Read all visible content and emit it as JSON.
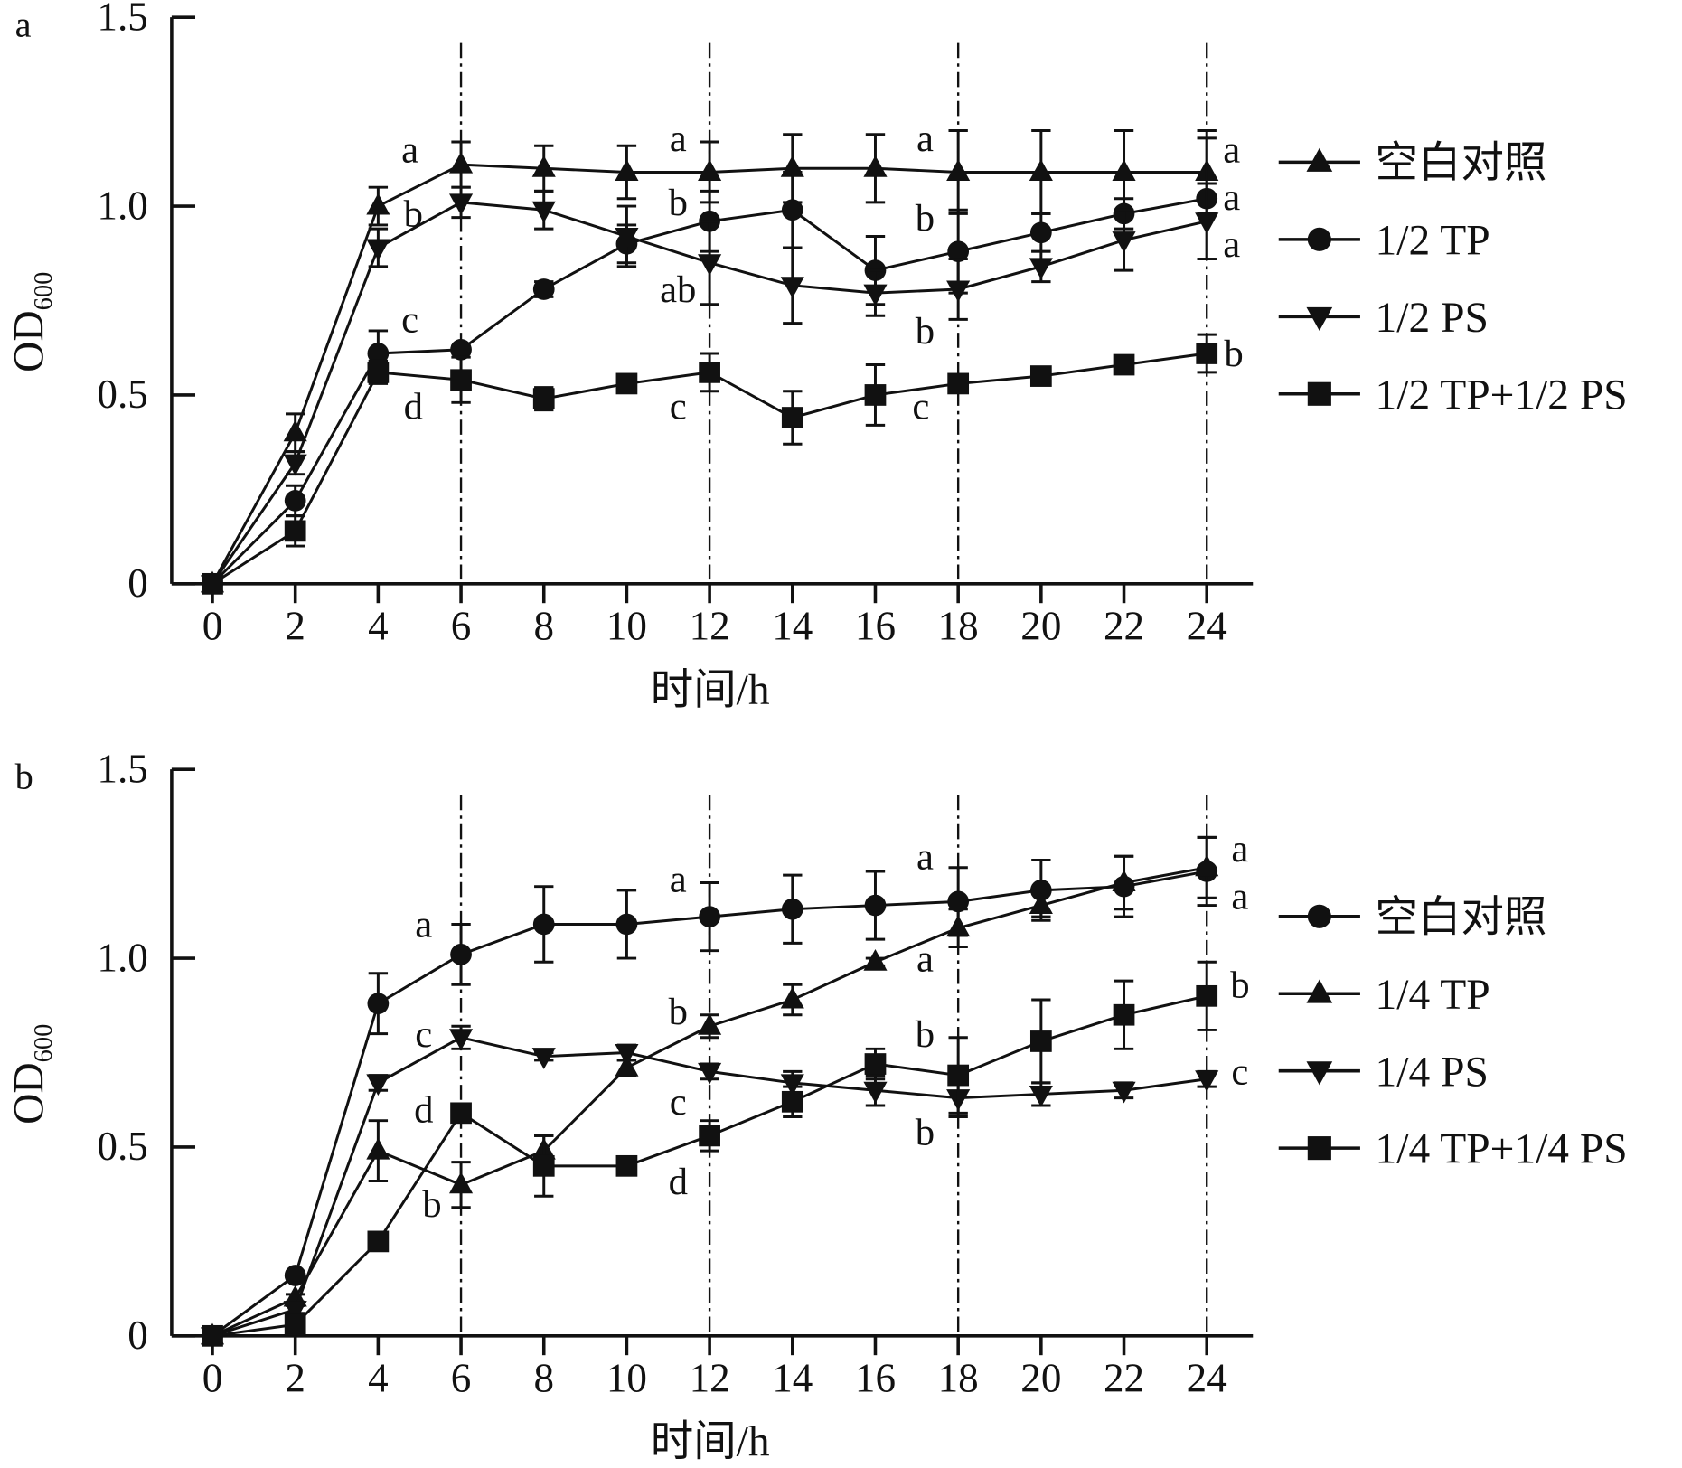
{
  "chart_data": [
    {
      "type": "line",
      "panel_label": "a",
      "xlabel": "时间/h",
      "ylabel": "OD",
      "ylabel_sub": "600",
      "xlim": [
        0,
        24
      ],
      "ylim": [
        0,
        1.5
      ],
      "x": [
        0,
        2,
        4,
        6,
        8,
        10,
        12,
        14,
        16,
        18,
        20,
        22,
        24
      ],
      "x_tick_labels": [
        "0",
        "2",
        "4",
        "6",
        "8",
        "10",
        "12",
        "14",
        "16",
        "18",
        "20",
        "22",
        "24"
      ],
      "y_ticks": [
        0,
        0.5,
        1.0,
        1.5
      ],
      "y_tick_labels": [
        "0",
        "0.5",
        "1.0",
        "1.5"
      ],
      "vlines": [
        6,
        12,
        18,
        24
      ],
      "legend_position": "right",
      "series": [
        {
          "name": "空白对照",
          "marker": "triangle-up",
          "values": [
            0,
            0.4,
            1.0,
            1.11,
            1.1,
            1.09,
            1.09,
            1.1,
            1.1,
            1.09,
            1.09,
            1.09,
            1.09
          ],
          "errors": [
            0,
            0.05,
            0.05,
            0.06,
            0.06,
            0.07,
            0.08,
            0.09,
            0.09,
            0.11,
            0.11,
            0.11,
            0.11
          ]
        },
        {
          "name": "1/2 TP",
          "marker": "circle",
          "values": [
            0,
            0.22,
            0.61,
            0.62,
            0.78,
            0.9,
            0.96,
            0.99,
            0.83,
            0.88,
            0.93,
            0.98,
            1.02
          ],
          "errors": [
            0,
            0.04,
            0.06,
            0.01,
            0.02,
            0.05,
            0.08,
            0.1,
            0.09,
            0.11,
            0.05,
            0.04,
            0.16
          ]
        },
        {
          "name": "1/2 PS",
          "marker": "triangle-down",
          "values": [
            0,
            0.32,
            0.89,
            1.01,
            0.99,
            0.92,
            0.85,
            0.79,
            0.77,
            0.78,
            0.84,
            0.91,
            0.96
          ],
          "errors": [
            0,
            0.03,
            0.05,
            0.04,
            0.05,
            0.08,
            0.11,
            0.1,
            0.06,
            0.08,
            0.04,
            0.08,
            0.1
          ]
        },
        {
          "name": "1/2 TP+1/2 PS",
          "marker": "square",
          "values": [
            0,
            0.14,
            0.56,
            0.54,
            0.49,
            0.53,
            0.56,
            0.44,
            0.5,
            0.53,
            0.55,
            0.58,
            0.61
          ],
          "errors": [
            0,
            0.04,
            0.03,
            0.06,
            0.03,
            0.02,
            0.05,
            0.07,
            0.08,
            0.02,
            0.01,
            0.01,
            0.05
          ]
        }
      ],
      "annotations": [
        {
          "text": "a",
          "x": 4.77,
          "y": 1.15
        },
        {
          "text": "b",
          "x": 4.85,
          "y": 0.98
        },
        {
          "text": "c",
          "x": 4.77,
          "y": 0.7
        },
        {
          "text": "d",
          "x": 4.85,
          "y": 0.47
        },
        {
          "text": "a",
          "x": 11.24,
          "y": 1.18
        },
        {
          "text": "b",
          "x": 11.24,
          "y": 1.01
        },
        {
          "text": "ab",
          "x": 11.24,
          "y": 0.78
        },
        {
          "text": "c",
          "x": 11.24,
          "y": 0.47
        },
        {
          "text": "a",
          "x": 17.2,
          "y": 1.18
        },
        {
          "text": "b",
          "x": 17.2,
          "y": 0.97
        },
        {
          "text": "b",
          "x": 17.2,
          "y": 0.67
        },
        {
          "text": "c",
          "x": 17.1,
          "y": 0.47
        },
        {
          "text": "a",
          "x": 24.6,
          "y": 1.15
        },
        {
          "text": "a",
          "x": 24.6,
          "y": 1.03
        },
        {
          "text": "a",
          "x": 24.6,
          "y": 0.96
        },
        {
          "text": "b",
          "x": 24.65,
          "y": 0.61
        }
      ]
    },
    {
      "type": "line",
      "panel_label": "b",
      "xlabel": "时间/h",
      "ylabel": "OD",
      "ylabel_sub": "600",
      "xlim": [
        0,
        24
      ],
      "ylim": [
        0,
        1.5
      ],
      "x": [
        0,
        2,
        4,
        6,
        8,
        10,
        12,
        14,
        16,
        18,
        20,
        22,
        24
      ],
      "x_tick_labels": [
        "0",
        "2",
        "4",
        "6",
        "8",
        "10",
        "12",
        "14",
        "16",
        "18",
        "20",
        "22",
        "24"
      ],
      "y_ticks": [
        0,
        0.5,
        1.0,
        1.5
      ],
      "y_tick_labels": [
        "0",
        "0.5",
        "1.0",
        "1.5"
      ],
      "vlines": [
        6,
        12,
        18,
        24
      ],
      "legend_position": "right",
      "series": [
        {
          "name": "空白对照",
          "marker": "circle",
          "values": [
            0,
            0.16,
            0.88,
            1.01,
            1.09,
            1.09,
            1.11,
            1.13,
            1.14,
            1.15,
            1.18,
            1.19,
            1.23
          ],
          "errors": [
            0,
            0.01,
            0.08,
            0.08,
            0.1,
            0.09,
            0.09,
            0.09,
            0.09,
            0.09,
            0.08,
            0.08,
            0.09
          ]
        },
        {
          "name": "1/4 TP",
          "marker": "triangle-up",
          "values": [
            0,
            0.1,
            0.49,
            0.4,
            0.49,
            0.71,
            0.82,
            0.89,
            0.99,
            1.08,
            1.14,
            1.2,
            1.24
          ],
          "errors": [
            0,
            0.01,
            0.08,
            0.06,
            0.04,
            0.02,
            0.03,
            0.04,
            0.01,
            0.05,
            0.03,
            0.07,
            0.08
          ]
        },
        {
          "name": "1/4 PS",
          "marker": "triangle-down",
          "values": [
            0,
            0.07,
            0.67,
            0.79,
            0.74,
            0.75,
            0.7,
            0.67,
            0.65,
            0.63,
            0.64,
            0.65,
            0.68
          ],
          "errors": [
            0,
            0.01,
            0.02,
            0.03,
            0.01,
            0.02,
            0.02,
            0.03,
            0.04,
            0.05,
            0.03,
            0.02,
            0.02
          ]
        },
        {
          "name": "1/4 TP+1/4 PS",
          "marker": "square",
          "values": [
            0,
            0.03,
            0.25,
            0.59,
            0.45,
            0.45,
            0.53,
            0.62,
            0.72,
            0.69,
            0.78,
            0.85,
            0.9
          ],
          "errors": [
            0,
            0.01,
            0.01,
            0.02,
            0.08,
            0.01,
            0.04,
            0.04,
            0.04,
            0.1,
            0.11,
            0.09,
            0.09
          ]
        }
      ],
      "annotations": [
        {
          "text": "a",
          "x": 5.1,
          "y": 1.09
        },
        {
          "text": "c",
          "x": 5.1,
          "y": 0.8
        },
        {
          "text": "d",
          "x": 5.1,
          "y": 0.6
        },
        {
          "text": "b",
          "x": 5.3,
          "y": 0.35
        },
        {
          "text": "a",
          "x": 11.24,
          "y": 1.21
        },
        {
          "text": "b",
          "x": 11.24,
          "y": 0.86
        },
        {
          "text": "c",
          "x": 11.24,
          "y": 0.62
        },
        {
          "text": "d",
          "x": 11.24,
          "y": 0.41
        },
        {
          "text": "a",
          "x": 17.2,
          "y": 1.27
        },
        {
          "text": "a",
          "x": 17.2,
          "y": 1.0
        },
        {
          "text": "b",
          "x": 17.2,
          "y": 0.8
        },
        {
          "text": "b",
          "x": 17.2,
          "y": 0.54
        },
        {
          "text": "a",
          "x": 24.8,
          "y": 1.29
        },
        {
          "text": "a",
          "x": 24.8,
          "y": 1.18
        },
        {
          "text": "b",
          "x": 24.8,
          "y": 0.93
        },
        {
          "text": "c",
          "x": 24.8,
          "y": 0.7
        }
      ]
    }
  ]
}
